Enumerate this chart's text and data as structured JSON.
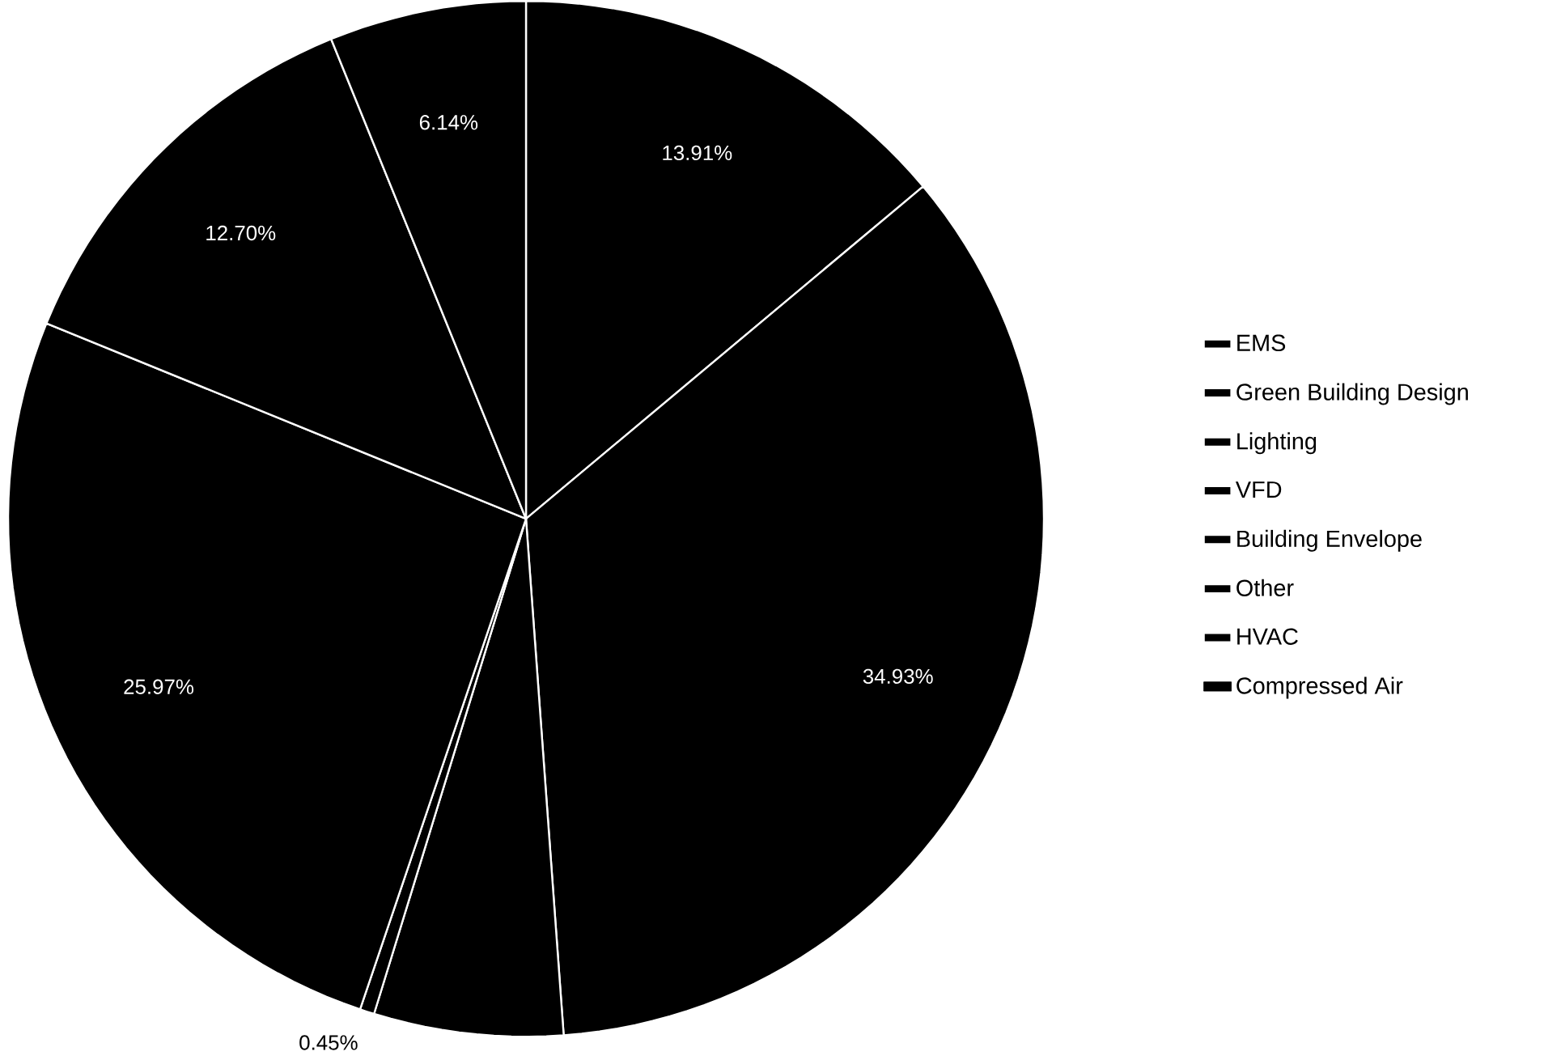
{
  "chart_data": {
    "type": "pie",
    "categories": [
      "EMS",
      "Green Building Design",
      "Lighting",
      "VFD",
      "Building Envelope",
      "Other",
      "HVAC",
      "Compressed Air"
    ],
    "values": [
      13.91,
      34.93,
      5.9,
      0.45,
      25.97,
      12.7,
      6.14,
      0
    ],
    "value_labels": [
      "13.91%",
      "34.93%",
      null,
      "0.45%",
      "25.97%",
      "12.70%",
      "6.14%",
      null
    ],
    "colors": [
      "#000000",
      "#000000",
      "#000000",
      "#000000",
      "#000000",
      "#000000",
      "#000000",
      "#000000"
    ],
    "legend": "right"
  }
}
